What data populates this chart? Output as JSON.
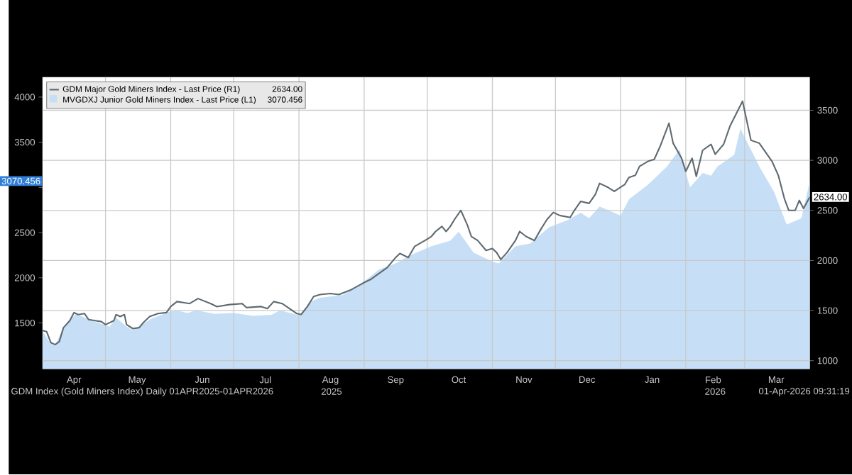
{
  "chart_data": {
    "type": "area",
    "series": [
      {
        "name": "GDM Major Gold Miners Index - Last Price (R1)",
        "type": "line",
        "axis": "y2",
        "color": "#5f6b70",
        "x": [
          "2025-04-01",
          "2025-04-03",
          "2025-04-05",
          "2025-04-07",
          "2025-04-09",
          "2025-04-11",
          "2025-04-14",
          "2025-04-16",
          "2025-04-18",
          "2025-04-21",
          "2025-04-23",
          "2025-04-26",
          "2025-04-29",
          "2025-05-01",
          "2025-05-05",
          "2025-05-06",
          "2025-05-08",
          "2025-05-10",
          "2025-05-11",
          "2025-05-14",
          "2025-05-17",
          "2025-05-19",
          "2025-05-22",
          "2025-05-26",
          "2025-05-30",
          "2025-06-01",
          "2025-06-04",
          "2025-06-07",
          "2025-06-10",
          "2025-06-14",
          "2025-06-20",
          "2025-06-23",
          "2025-06-29",
          "2025-07-05",
          "2025-07-07",
          "2025-07-14",
          "2025-07-17",
          "2025-07-20",
          "2025-07-24",
          "2025-07-31",
          "2025-08-02",
          "2025-08-05",
          "2025-08-08",
          "2025-08-11",
          "2025-08-16",
          "2025-08-20",
          "2025-08-26",
          "2025-09-01",
          "2025-09-04",
          "2025-09-08",
          "2025-09-12",
          "2025-09-16",
          "2025-09-18",
          "2025-09-22",
          "2025-09-25",
          "2025-09-30",
          "2025-10-03",
          "2025-10-05",
          "2025-10-08",
          "2025-10-10",
          "2025-10-12",
          "2025-10-14",
          "2025-10-17",
          "2025-10-20",
          "2025-10-22",
          "2025-10-25",
          "2025-10-29",
          "2025-11-01",
          "2025-11-03",
          "2025-11-05",
          "2025-11-08",
          "2025-11-12",
          "2025-11-14",
          "2025-11-17",
          "2025-11-21",
          "2025-11-24",
          "2025-11-27",
          "2025-11-30",
          "2025-12-03",
          "2025-12-08",
          "2025-12-10",
          "2025-12-13",
          "2025-12-17",
          "2025-12-20",
          "2025-12-22",
          "2025-12-26",
          "2025-12-29",
          "2026-01-03",
          "2026-01-05",
          "2026-01-08",
          "2026-01-10",
          "2026-01-14",
          "2026-01-17",
          "2026-01-20",
          "2026-01-24",
          "2026-01-26",
          "2026-01-30",
          "2026-02-01",
          "2026-02-04",
          "2026-02-06",
          "2026-02-09",
          "2026-02-13",
          "2026-02-15",
          "2026-02-19",
          "2026-02-22",
          "2026-02-28",
          "2026-03-04",
          "2026-03-08",
          "2026-03-14",
          "2026-03-17",
          "2026-03-20",
          "2026-03-22",
          "2026-03-25",
          "2026-03-27",
          "2026-03-29",
          "2026-04-01"
        ],
        "values": [
          1300,
          1290,
          1180,
          1160,
          1190,
          1330,
          1400,
          1480,
          1460,
          1470,
          1410,
          1400,
          1390,
          1360,
          1400,
          1460,
          1440,
          1460,
          1360,
          1320,
          1330,
          1380,
          1440,
          1470,
          1480,
          1540,
          1590,
          1580,
          1570,
          1620,
          1570,
          1540,
          1560,
          1570,
          1530,
          1540,
          1520,
          1590,
          1570,
          1470,
          1460,
          1540,
          1640,
          1660,
          1670,
          1660,
          1710,
          1780,
          1810,
          1870,
          1930,
          2030,
          2070,
          2030,
          2140,
          2200,
          2240,
          2290,
          2340,
          2290,
          2340,
          2410,
          2500,
          2360,
          2240,
          2200,
          2100,
          2120,
          2080,
          2010,
          2080,
          2200,
          2290,
          2240,
          2200,
          2310,
          2410,
          2480,
          2450,
          2430,
          2500,
          2590,
          2570,
          2660,
          2770,
          2730,
          2690,
          2760,
          2830,
          2850,
          2940,
          2990,
          3010,
          3150,
          3370,
          3170,
          3020,
          2890,
          3020,
          2840,
          3100,
          3160,
          3060,
          3160,
          3340,
          3590,
          3200,
          3170,
          2990,
          2850,
          2610,
          2500,
          2500,
          2600,
          2520,
          2634
        ]
      },
      {
        "name": "MVGDXJ Junior Gold Miners Index - Last Price (L1)",
        "axis": "y",
        "color": "#c6dff7",
        "x": [
          "2025-04-01",
          "2025-04-05",
          "2025-04-07",
          "2025-04-11",
          "2025-04-15",
          "2025-04-17",
          "2025-04-24",
          "2025-05-03",
          "2025-05-06",
          "2025-05-11",
          "2025-05-14",
          "2025-05-23",
          "2025-06-01",
          "2025-06-04",
          "2025-06-09",
          "2025-06-13",
          "2025-06-22",
          "2025-07-01",
          "2025-07-10",
          "2025-07-19",
          "2025-07-23",
          "2025-08-02",
          "2025-08-06",
          "2025-08-11",
          "2025-08-22",
          "2025-08-31",
          "2025-09-08",
          "2025-09-16",
          "2025-09-23",
          "2025-10-03",
          "2025-10-12",
          "2025-10-16",
          "2025-10-23",
          "2025-11-01",
          "2025-11-04",
          "2025-11-12",
          "2025-11-19",
          "2025-11-28",
          "2025-12-07",
          "2025-12-13",
          "2025-12-17",
          "2025-12-22",
          "2026-01-01",
          "2026-01-05",
          "2026-01-14",
          "2026-01-23",
          "2026-01-29",
          "2026-02-03",
          "2026-02-09",
          "2026-02-13",
          "2026-02-16",
          "2026-02-24",
          "2026-02-27",
          "2026-03-08",
          "2026-03-15",
          "2026-03-21",
          "2026-03-28",
          "2026-04-01"
        ],
        "values": [
          1410,
          1270,
          1250,
          1450,
          1560,
          1600,
          1530,
          1460,
          1560,
          1460,
          1420,
          1550,
          1630,
          1640,
          1610,
          1640,
          1600,
          1610,
          1580,
          1590,
          1640,
          1580,
          1730,
          1780,
          1810,
          1940,
          2090,
          2160,
          2250,
          2350,
          2410,
          2510,
          2280,
          2180,
          2160,
          2350,
          2380,
          2560,
          2640,
          2720,
          2660,
          2790,
          2690,
          2870,
          3030,
          3230,
          3420,
          3000,
          3160,
          3130,
          3230,
          3360,
          3650,
          3230,
          2950,
          2590,
          2660,
          3070.456
        ]
      }
    ],
    "xlim": [
      "2025-04-01",
      "2026-04-01"
    ],
    "xticks": [
      {
        "value": "2025-04-16",
        "label": "Apr"
      },
      {
        "value": "2025-05-01",
        "label": null
      },
      {
        "value": "2025-05-16",
        "label": "May"
      },
      {
        "value": "2025-06-01",
        "label": null
      },
      {
        "value": "2025-06-16",
        "label": "Jun"
      },
      {
        "value": "2025-07-01",
        "label": null
      },
      {
        "value": "2025-07-16",
        "label": "Jul"
      },
      {
        "value": "2025-08-01",
        "label": null
      },
      {
        "value": "2025-08-16",
        "label": "Aug"
      },
      {
        "value": "2025-09-01",
        "label": null
      },
      {
        "value": "2025-09-16",
        "label": "Sep"
      },
      {
        "value": "2025-10-01",
        "label": null
      },
      {
        "value": "2025-10-16",
        "label": "Oct"
      },
      {
        "value": "2025-11-01",
        "label": null
      },
      {
        "value": "2025-11-16",
        "label": "Nov"
      },
      {
        "value": "2025-12-01",
        "label": null
      },
      {
        "value": "2025-12-16",
        "label": "Dec"
      },
      {
        "value": "2026-01-01",
        "label": null
      },
      {
        "value": "2026-01-16",
        "label": "Jan"
      },
      {
        "value": "2026-02-01",
        "label": null
      },
      {
        "value": "2026-02-14",
        "label": "Feb"
      },
      {
        "value": "2026-03-01",
        "label": null
      },
      {
        "value": "2026-03-16",
        "label": "Mar"
      }
    ],
    "ylim": [
      990,
      4220
    ],
    "yticks": [
      1500,
      2000,
      2500,
      {
        "value": 3000,
        "label": null
      },
      3500,
      4000
    ],
    "y2lim": [
      916,
      3830
    ],
    "y2ticks": [
      1000,
      1500,
      2000,
      2500,
      3000,
      3500
    ],
    "grid": true,
    "legend": "top left",
    "annotations": [
      "2634.00",
      "3070.456",
      "2025",
      "2026",
      "GDM Index (Gold Miners Index) Daily 01APR2025-01APR2026",
      "01-Apr-2026 09:31:19"
    ]
  }
}
